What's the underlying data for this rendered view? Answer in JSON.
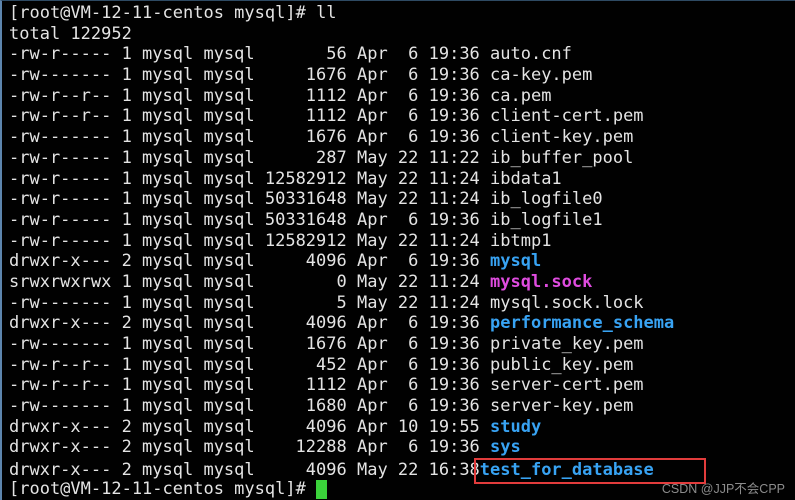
{
  "terminal": {
    "prompt": "[root@VM-12-11-centos mysql]#",
    "command": "ll",
    "total_line": "total 122952",
    "colors": {
      "fg": "#e4e4e4",
      "dir-blue": "#38a3f3",
      "sock-magenta": "#e04ce0",
      "box-red": "#e23c3c",
      "cursor-green": "#3bd23b",
      "frame-blue": "#5d85ad",
      "watermark-gray": "#8c8c8c"
    },
    "rows": [
      {
        "perms": "-rw-r-----",
        "links": "1",
        "owner": "mysql",
        "group": "mysql",
        "size": "56",
        "date": "Apr  6 19:36",
        "name": "auto.cnf",
        "style": "plain"
      },
      {
        "perms": "-rw-------",
        "links": "1",
        "owner": "mysql",
        "group": "mysql",
        "size": "1676",
        "date": "Apr  6 19:36",
        "name": "ca-key.pem",
        "style": "plain"
      },
      {
        "perms": "-rw-r--r--",
        "links": "1",
        "owner": "mysql",
        "group": "mysql",
        "size": "1112",
        "date": "Apr  6 19:36",
        "name": "ca.pem",
        "style": "plain"
      },
      {
        "perms": "-rw-r--r--",
        "links": "1",
        "owner": "mysql",
        "group": "mysql",
        "size": "1112",
        "date": "Apr  6 19:36",
        "name": "client-cert.pem",
        "style": "plain"
      },
      {
        "perms": "-rw-------",
        "links": "1",
        "owner": "mysql",
        "group": "mysql",
        "size": "1676",
        "date": "Apr  6 19:36",
        "name": "client-key.pem",
        "style": "plain"
      },
      {
        "perms": "-rw-r-----",
        "links": "1",
        "owner": "mysql",
        "group": "mysql",
        "size": "287",
        "date": "May 22 11:22",
        "name": "ib_buffer_pool",
        "style": "plain"
      },
      {
        "perms": "-rw-r-----",
        "links": "1",
        "owner": "mysql",
        "group": "mysql",
        "size": "12582912",
        "date": "May 22 11:24",
        "name": "ibdata1",
        "style": "plain"
      },
      {
        "perms": "-rw-r-----",
        "links": "1",
        "owner": "mysql",
        "group": "mysql",
        "size": "50331648",
        "date": "May 22 11:24",
        "name": "ib_logfile0",
        "style": "plain"
      },
      {
        "perms": "-rw-r-----",
        "links": "1",
        "owner": "mysql",
        "group": "mysql",
        "size": "50331648",
        "date": "Apr  6 19:36",
        "name": "ib_logfile1",
        "style": "plain"
      },
      {
        "perms": "-rw-r-----",
        "links": "1",
        "owner": "mysql",
        "group": "mysql",
        "size": "12582912",
        "date": "May 22 11:24",
        "name": "ibtmp1",
        "style": "plain"
      },
      {
        "perms": "drwxr-x---",
        "links": "2",
        "owner": "mysql",
        "group": "mysql",
        "size": "4096",
        "date": "Apr  6 19:36",
        "name": "mysql",
        "style": "dir"
      },
      {
        "perms": "srwxrwxrwx",
        "links": "1",
        "owner": "mysql",
        "group": "mysql",
        "size": "0",
        "date": "May 22 11:24",
        "name": "mysql.sock",
        "style": "sock"
      },
      {
        "perms": "-rw-------",
        "links": "1",
        "owner": "mysql",
        "group": "mysql",
        "size": "5",
        "date": "May 22 11:24",
        "name": "mysql.sock.lock",
        "style": "plain"
      },
      {
        "perms": "drwxr-x---",
        "links": "2",
        "owner": "mysql",
        "group": "mysql",
        "size": "4096",
        "date": "Apr  6 19:36",
        "name": "performance_schema",
        "style": "dir"
      },
      {
        "perms": "-rw-------",
        "links": "1",
        "owner": "mysql",
        "group": "mysql",
        "size": "1676",
        "date": "Apr  6 19:36",
        "name": "private_key.pem",
        "style": "plain"
      },
      {
        "perms": "-rw-r--r--",
        "links": "1",
        "owner": "mysql",
        "group": "mysql",
        "size": "452",
        "date": "Apr  6 19:36",
        "name": "public_key.pem",
        "style": "plain"
      },
      {
        "perms": "-rw-r--r--",
        "links": "1",
        "owner": "mysql",
        "group": "mysql",
        "size": "1112",
        "date": "Apr  6 19:36",
        "name": "server-cert.pem",
        "style": "plain"
      },
      {
        "perms": "-rw-------",
        "links": "1",
        "owner": "mysql",
        "group": "mysql",
        "size": "1680",
        "date": "Apr  6 19:36",
        "name": "server-key.pem",
        "style": "plain"
      },
      {
        "perms": "drwxr-x---",
        "links": "2",
        "owner": "mysql",
        "group": "mysql",
        "size": "4096",
        "date": "Apr 10 19:55",
        "name": "study",
        "style": "dir"
      },
      {
        "perms": "drwxr-x---",
        "links": "2",
        "owner": "mysql",
        "group": "mysql",
        "size": "12288",
        "date": "Apr  6 19:36",
        "name": "sys",
        "style": "dir"
      },
      {
        "perms": "drwxr-x---",
        "links": "2",
        "owner": "mysql",
        "group": "mysql",
        "size": "4096",
        "date": "May 22 16:38",
        "name": "test_for_database",
        "style": "dir",
        "boxed": true
      }
    ]
  },
  "watermark": "CSDN @JJP不会CPP"
}
